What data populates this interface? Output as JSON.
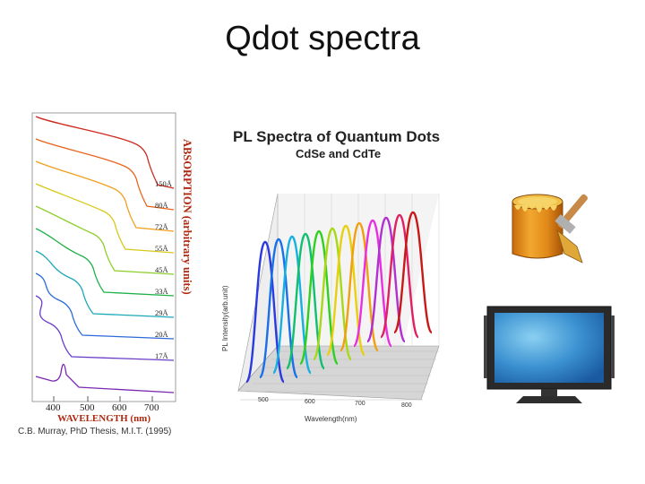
{
  "slide": {
    "title": "Qdot spectra"
  },
  "absorption_figure": {
    "y_axis_label": "ABSORPTION (arbitrary units)",
    "x_axis_label": "WAVELENGTH (nm)",
    "x_ticks": [
      "400",
      "500",
      "600",
      "700"
    ],
    "size_labels": [
      "150Å",
      "80Å",
      "72Å",
      "55Å",
      "45Å",
      "33Å",
      "29Å",
      "20Å",
      "17Å"
    ],
    "credit": "C.B. Murray, PhD Thesis, M.I.T. (1995)",
    "curve_colors": [
      "#cc2a1e",
      "#e8641c",
      "#f0a020",
      "#d8c818",
      "#8ccf28",
      "#1fb04a",
      "#1aa8b8",
      "#2a6ad8",
      "#6a3cc8"
    ]
  },
  "pl_figure": {
    "title": "PL Spectra of Quantum Dots",
    "subtitle": "CdSe and CdTe",
    "y_axis_label": "PL Intensity(arb.unit)",
    "x_axis_label": "Wavelength(nm)",
    "x_ticks": [
      "500",
      "600",
      "700",
      "800"
    ],
    "peak_colors": [
      "#2a3ae0",
      "#1a70e8",
      "#18b0e0",
      "#10c070",
      "#30d020",
      "#a8d818",
      "#e8d010",
      "#f0a010",
      "#e830e0",
      "#b030d0",
      "#e02060",
      "#c81818"
    ]
  },
  "icons": [
    "paint-bucket-icon",
    "flat-screen-tv-icon"
  ]
}
